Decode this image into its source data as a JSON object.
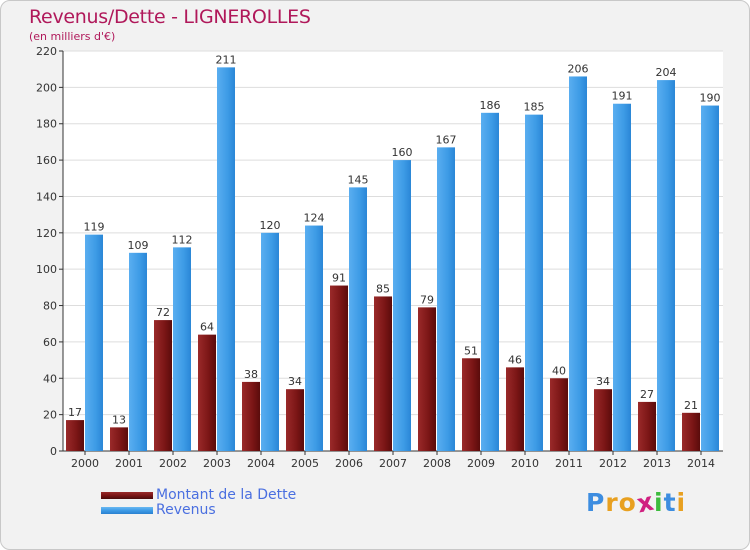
{
  "header": {
    "title": "Revenus/Dette - LIGNEROLLES",
    "subtitle": "(en milliers d'€)"
  },
  "chart_data": {
    "type": "bar",
    "title": "Revenus/Dette - LIGNEROLLES",
    "subtitle": "(en milliers d'€)",
    "categories": [
      "2000",
      "2001",
      "2002",
      "2003",
      "2004",
      "2005",
      "2006",
      "2007",
      "2008",
      "2009",
      "2010",
      "2011",
      "2012",
      "2013",
      "2014"
    ],
    "series": [
      {
        "name": "Montant de la Dette",
        "color": "#7a1515",
        "values": [
          17,
          13,
          72,
          64,
          38,
          34,
          91,
          85,
          79,
          51,
          46,
          40,
          34,
          27,
          21
        ]
      },
      {
        "name": "Revenus",
        "color": "#3d9be6",
        "values": [
          119,
          109,
          112,
          211,
          120,
          124,
          145,
          160,
          167,
          186,
          185,
          206,
          191,
          204,
          190
        ]
      }
    ],
    "ylim": [
      0,
      220
    ],
    "yticks": [
      0,
      20,
      40,
      60,
      80,
      100,
      120,
      140,
      160,
      180,
      200,
      220
    ],
    "grid": true,
    "legend": "bottom-left"
  },
  "legend": {
    "items": [
      {
        "label": "Montant de la Dette",
        "color": "#7a1515"
      },
      {
        "label": "Revenus",
        "color": "#3d9be6"
      }
    ]
  },
  "logo": {
    "text": "Proxiti",
    "letters": [
      "P",
      "r",
      "o",
      "x",
      "i",
      "t",
      "i"
    ],
    "colors": [
      "#3d8de0",
      "#e8a020",
      "#e8a020",
      "#d02080",
      "#3dbb3d",
      "#3d8de0",
      "#e8a020"
    ]
  }
}
